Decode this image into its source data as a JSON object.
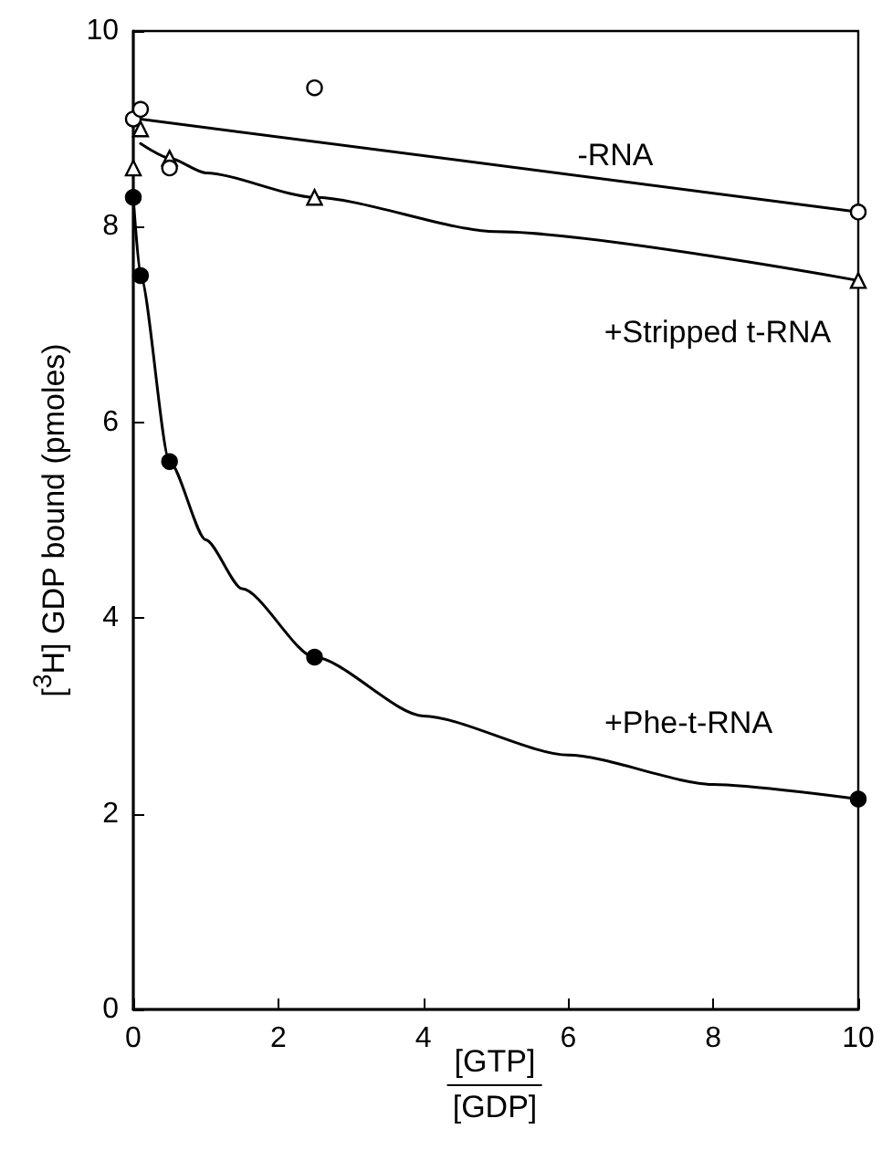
{
  "chart_data": {
    "type": "scatter",
    "xlabel": "[GTP]\n[GDP]",
    "ylabel": "[$^{3}$H] GDP bound (pmoles)",
    "xlim": [
      0,
      10
    ],
    "xticks": [
      0,
      2,
      4,
      6,
      8,
      10
    ],
    "ylim": [
      0,
      10
    ],
    "yticks": [
      0,
      2,
      4,
      6,
      8,
      10
    ],
    "grid": false,
    "series": [
      {
        "marker": "circle",
        "color": "#ffffff",
        "x": [
          0,
          0.1,
          0.5,
          2.5,
          10
        ],
        "values": [
          9.1,
          9.2,
          8.6,
          9.42,
          8.15
        ]
      },
      {
        "marker": "triangle",
        "color": "#ffffff",
        "x": [
          0,
          0.1,
          0.5,
          2.5,
          10
        ],
        "values": [
          8.6,
          9.0,
          8.7,
          8.3,
          7.45
        ]
      },
      {
        "marker": "circle",
        "color": "#000000",
        "x": [
          0,
          0.1,
          0.5,
          2.5,
          10
        ],
        "values": [
          8.3,
          7.5,
          5.6,
          3.6,
          2.15
        ]
      },
      {
        "type": "line",
        "marker": "none",
        "color": "#000000",
        "x": [
          0.1,
          10
        ],
        "values": [
          9.1,
          8.15
        ]
      },
      {
        "type": "line",
        "marker": "none",
        "color": "#000000",
        "x": [
          0.1,
          0.5,
          1,
          2.5,
          5,
          10
        ],
        "values": [
          8.85,
          8.7,
          8.55,
          8.3,
          7.95,
          7.45
        ]
      },
      {
        "type": "line",
        "marker": "none",
        "color": "#000000",
        "x": [
          0,
          0.1,
          0.5,
          1,
          1.5,
          2.5,
          4,
          6,
          8,
          10
        ],
        "values": [
          8.3,
          7.5,
          5.6,
          4.8,
          4.3,
          3.6,
          3.0,
          2.6,
          2.3,
          2.15
        ]
      }
    ],
    "annotations": [
      "-RNA",
      "+Stripped t-RNA",
      "+Phe-t-RNA"
    ]
  }
}
